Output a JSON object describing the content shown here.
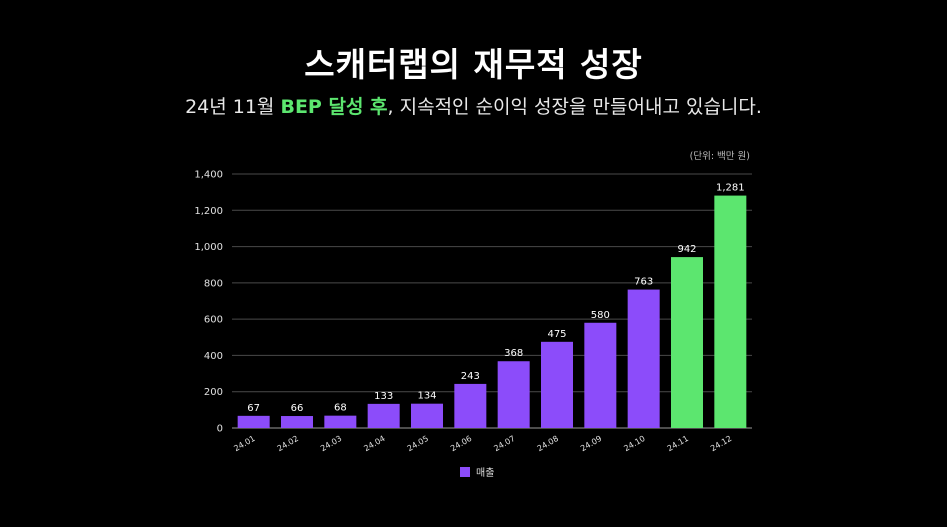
{
  "header": {
    "title": "스캐터랩의 재무적 성장",
    "subtitle_pre": "24년 11월 ",
    "subtitle_highlight": "BEP 달성 후",
    "subtitle_post": ", 지속적인 순이익 성장을 만들어내고 있습니다."
  },
  "unit_label": "(단위: 백만 원)",
  "colors": {
    "revenue": "#8c4cfa",
    "highlight": "#5ce66f",
    "grid": "#4a4a4a"
  },
  "chart_data": {
    "type": "bar",
    "title": "스캐터랩의 재무적 성장",
    "categories": [
      "24.01",
      "24.02",
      "24.03",
      "24.04",
      "24.05",
      "24.06",
      "24.07",
      "24.08",
      "24.09",
      "24.10",
      "24.11",
      "24.12"
    ],
    "series": [
      {
        "name": "매출",
        "values": [
          67,
          66,
          68,
          133,
          134,
          243,
          368,
          475,
          580,
          763,
          942,
          1281
        ],
        "value_labels": [
          "67",
          "66",
          "68",
          "133",
          "134",
          "243",
          "368",
          "475",
          "580",
          "763",
          "942",
          "1,281"
        ],
        "highlighted": [
          false,
          false,
          false,
          false,
          false,
          false,
          false,
          false,
          false,
          false,
          true,
          true
        ]
      }
    ],
    "yticks": [
      0,
      200,
      400,
      600,
      800,
      1000,
      1200,
      1400
    ],
    "ytick_labels": [
      "0",
      "200",
      "400",
      "600",
      "800",
      "1,000",
      "1,200",
      "1,400"
    ],
    "ylim": [
      0,
      1400
    ],
    "xlabel": "",
    "ylabel": "",
    "grid": true,
    "legend": "bottom-center"
  },
  "legend": {
    "label": "매출"
  }
}
